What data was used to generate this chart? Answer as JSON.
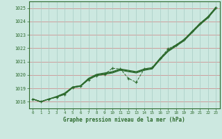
{
  "title": "Graphe pression niveau de la mer (hPa)",
  "background_color": "#cce8e0",
  "plot_bg_color": "#cce8e0",
  "line_color": "#2d6a2d",
  "ylim": [
    1017.5,
    1025.5
  ],
  "xlim": [
    -0.5,
    23.5
  ],
  "yticks": [
    1018,
    1019,
    1020,
    1021,
    1022,
    1023,
    1024,
    1025
  ],
  "xticks": [
    0,
    1,
    2,
    3,
    4,
    5,
    6,
    7,
    8,
    9,
    10,
    11,
    12,
    13,
    14,
    15,
    16,
    17,
    18,
    19,
    20,
    21,
    22,
    23
  ],
  "smooth_line1": [
    1018.2,
    1018.0,
    1018.2,
    1018.35,
    1018.55,
    1019.05,
    1019.15,
    1019.65,
    1019.95,
    1020.05,
    1020.15,
    1020.35,
    1020.25,
    1020.15,
    1020.35,
    1020.45,
    1021.15,
    1021.75,
    1022.15,
    1022.55,
    1023.15,
    1023.75,
    1024.25,
    1024.95
  ],
  "smooth_line2": [
    1018.2,
    1018.0,
    1018.2,
    1018.35,
    1018.6,
    1019.1,
    1019.2,
    1019.7,
    1020.0,
    1020.1,
    1020.2,
    1020.4,
    1020.3,
    1020.2,
    1020.4,
    1020.5,
    1021.2,
    1021.8,
    1022.2,
    1022.6,
    1023.2,
    1023.8,
    1024.3,
    1025.0
  ],
  "smooth_line3": [
    1018.2,
    1018.0,
    1018.2,
    1018.4,
    1018.65,
    1019.1,
    1019.2,
    1019.75,
    1020.05,
    1020.15,
    1020.25,
    1020.45,
    1020.35,
    1020.25,
    1020.45,
    1020.55,
    1021.25,
    1021.85,
    1022.25,
    1022.65,
    1023.25,
    1023.85,
    1024.35,
    1025.05
  ],
  "marker_line": [
    1018.2,
    1018.0,
    1018.2,
    1018.35,
    1018.55,
    1019.05,
    1019.15,
    1019.65,
    1019.95,
    1020.05,
    1020.5,
    1020.45,
    1019.75,
    1019.45,
    1020.45,
    1020.55,
    1021.25,
    1021.95,
    1022.25,
    1022.65,
    1023.25,
    1023.85,
    1024.35,
    1025.05
  ]
}
